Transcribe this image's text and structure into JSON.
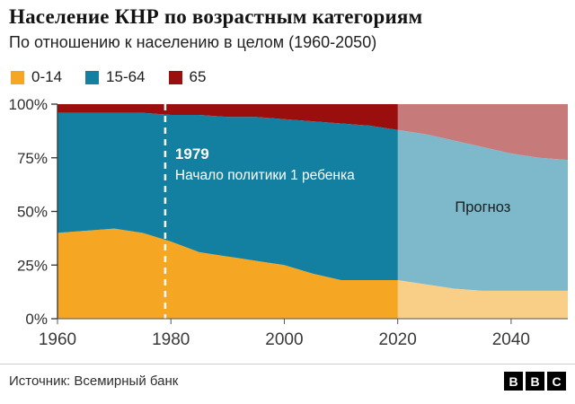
{
  "header": {
    "title": "Население КНР по возрастным категориям",
    "subtitle": "По отношению к населению в целом (1960-2050)"
  },
  "legend": {
    "items": [
      {
        "label": "0-14",
        "color": "#F5A623"
      },
      {
        "label": "15-64",
        "color": "#1380A1"
      },
      {
        "label": "65",
        "color": "#9A0E0E"
      }
    ]
  },
  "chart_data": {
    "type": "area",
    "stacked": true,
    "title": "Население КНР по возрастным категориям",
    "subtitle": "По отношению к населению в целом (1960-2050)",
    "xlim": [
      1960,
      2050
    ],
    "ylim": [
      0,
      100
    ],
    "x": [
      1960,
      1965,
      1970,
      1975,
      1980,
      1985,
      1990,
      1995,
      2000,
      2005,
      2010,
      2015,
      2020,
      2025,
      2030,
      2035,
      2040,
      2045,
      2050
    ],
    "series": [
      {
        "name": "0-14",
        "color": "#F5A623",
        "values": [
          40,
          41,
          42,
          40,
          36,
          31,
          29,
          27,
          25,
          21,
          18,
          18,
          18,
          16,
          14,
          13,
          13,
          13,
          13
        ]
      },
      {
        "name": "15-64",
        "color": "#1380A1",
        "values": [
          56,
          55,
          54,
          56,
          59,
          64,
          65,
          67,
          68,
          71,
          73,
          72,
          70,
          70,
          69,
          67,
          64,
          62,
          61
        ]
      },
      {
        "name": "65",
        "color": "#9A0E0E",
        "values": [
          4,
          4,
          4,
          4,
          5,
          5,
          6,
          6,
          7,
          8,
          9,
          10,
          12,
          14,
          17,
          20,
          23,
          25,
          26
        ]
      }
    ],
    "y_ticks": [
      {
        "value": 0,
        "label": "0%"
      },
      {
        "value": 25,
        "label": "25%"
      },
      {
        "value": 50,
        "label": "50%"
      },
      {
        "value": 75,
        "label": "75%"
      },
      {
        "value": 100,
        "label": "100%"
      }
    ],
    "x_ticks": [
      {
        "value": 1960,
        "label": "1960"
      },
      {
        "value": 1980,
        "label": "1980"
      },
      {
        "value": 2000,
        "label": "2000"
      },
      {
        "value": 2020,
        "label": "2020"
      },
      {
        "value": 2040,
        "label": "2040"
      }
    ],
    "annotation": {
      "year": 1979,
      "title": "1979",
      "text": "Начало политики 1 ребенка"
    },
    "forecast": {
      "start": 2020,
      "end": 2050,
      "label": "Прогноз",
      "overlay_opacity": 0.45
    },
    "grid": false,
    "legend_position": "top"
  },
  "footer": {
    "source": "Источник: Всемирный банк",
    "logo_letters": [
      "B",
      "B",
      "C"
    ]
  }
}
